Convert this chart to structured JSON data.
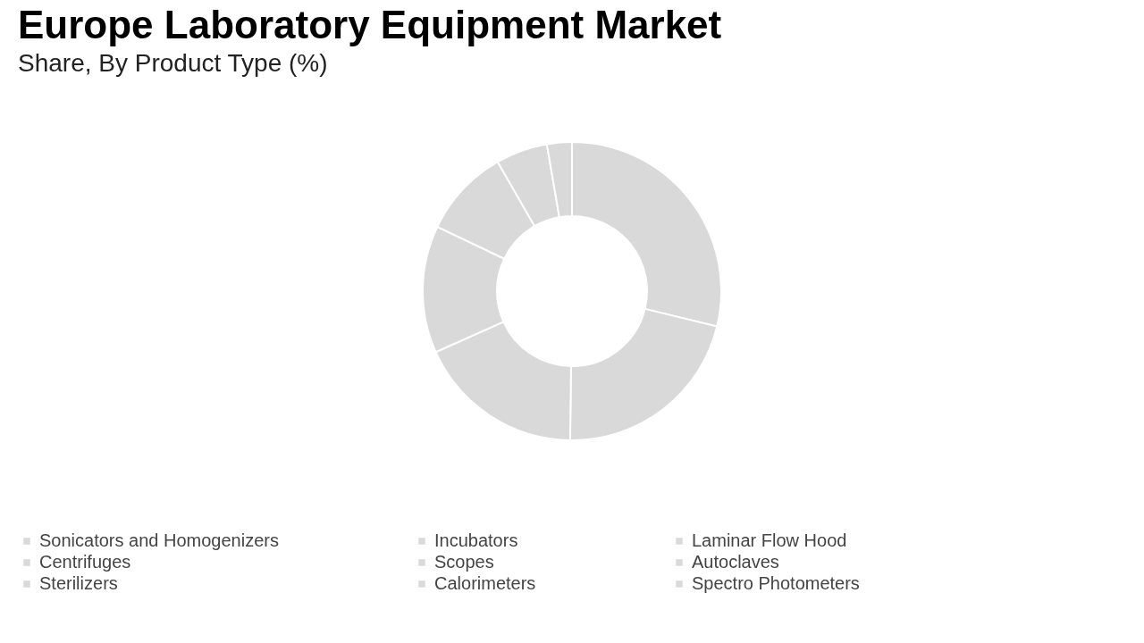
{
  "chart_data": {
    "type": "donut",
    "title": "Europe Laboratory Equipment Market",
    "subtitle": "Share, By Product Type (%)",
    "categories": [
      "Sonicators and Homogenizers",
      "Incubators",
      "Laminar Flow Hood",
      "Centrifuges",
      "Scopes",
      "Autoclaves",
      "Sterilizers",
      "Calorimeters",
      "Spectro Photometers"
    ],
    "values": [
      28.8,
      21.4,
      18.1,
      13.8,
      9.6,
      5.6,
      2.7,
      0,
      0
    ],
    "colors": [
      "#d9d9d9",
      "#d9d9d9",
      "#d9d9d9",
      "#d9d9d9",
      "#d9d9d9",
      "#d9d9d9",
      "#d9d9d9",
      "#d9d9d9",
      "#d9d9d9"
    ],
    "legend": "bottom"
  }
}
